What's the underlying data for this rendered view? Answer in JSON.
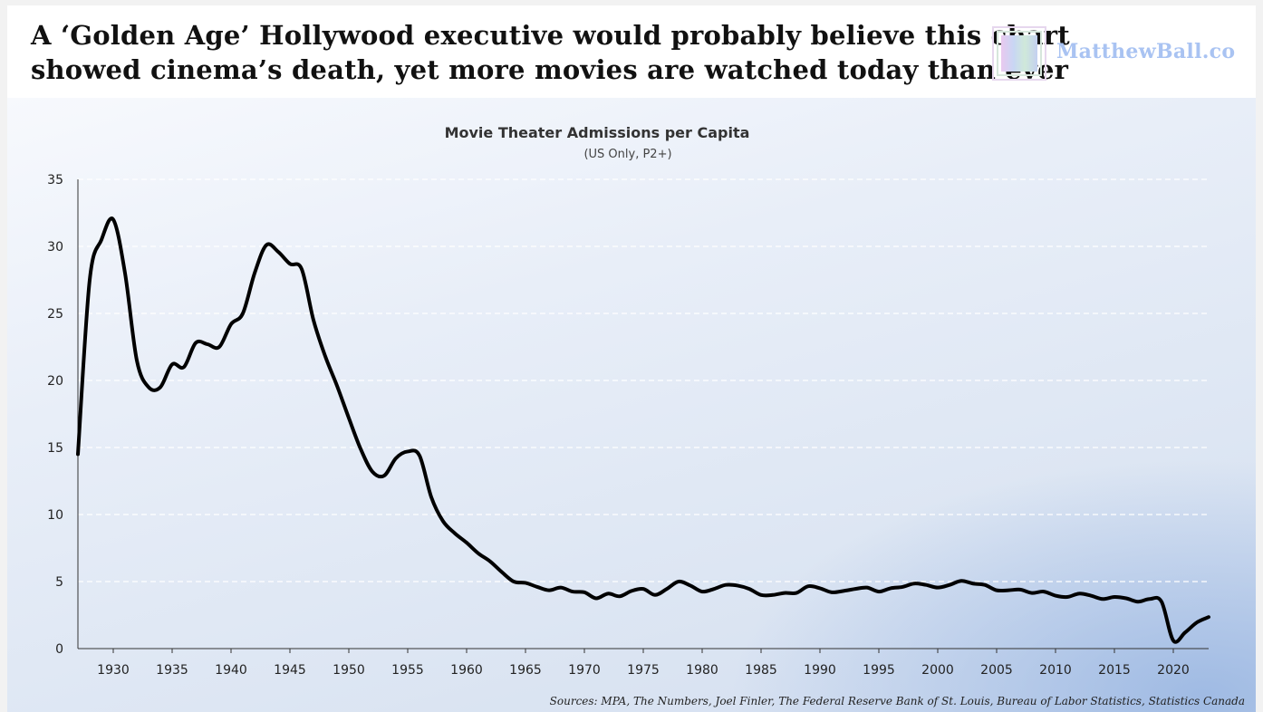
{
  "header": {
    "headline_line1": "A ‘Golden Age’ Hollywood executive would probably believe this chart",
    "headline_line2": "showed cinema’s death, yet more movies are watched today than ever",
    "logo_text": "MatthewBall.co",
    "logo_color": "#a9c3f2"
  },
  "source_note": "Sources: MPA, The Numbers, Joel Finler, The Federal Reserve Bank of St. Louis, Bureau of Labor Statistics, Statistics Canada",
  "chart_data": {
    "type": "line",
    "title": "Movie Theater Admissions per Capita",
    "subtitle": "(US Only, P2+)",
    "xlabel": "",
    "ylabel": "",
    "xlim": [
      1927,
      2023
    ],
    "ylim": [
      0,
      35
    ],
    "xticks": [
      1930,
      1935,
      1940,
      1945,
      1950,
      1955,
      1960,
      1965,
      1970,
      1975,
      1980,
      1985,
      1990,
      1995,
      2000,
      2005,
      2010,
      2015,
      2020
    ],
    "yticks": [
      0,
      5,
      10,
      15,
      20,
      25,
      30,
      35
    ],
    "grid": "horizontal dashed",
    "line_color": "#000000",
    "series": [
      {
        "name": "Admissions per Capita",
        "x": [
          1927,
          1928,
          1929,
          1930,
          1931,
          1932,
          1933,
          1934,
          1935,
          1936,
          1937,
          1938,
          1939,
          1940,
          1941,
          1942,
          1943,
          1944,
          1945,
          1946,
          1947,
          1948,
          1949,
          1950,
          1951,
          1952,
          1953,
          1954,
          1955,
          1956,
          1957,
          1958,
          1959,
          1960,
          1961,
          1962,
          1963,
          1964,
          1965,
          1966,
          1967,
          1968,
          1969,
          1970,
          1971,
          1972,
          1973,
          1974,
          1975,
          1976,
          1977,
          1978,
          1979,
          1980,
          1981,
          1982,
          1983,
          1984,
          1985,
          1986,
          1987,
          1988,
          1989,
          1990,
          1991,
          1992,
          1993,
          1994,
          1995,
          1996,
          1997,
          1998,
          1999,
          2000,
          2001,
          2002,
          2003,
          2004,
          2005,
          2006,
          2007,
          2008,
          2009,
          2010,
          2011,
          2012,
          2013,
          2014,
          2015,
          2016,
          2017,
          2018,
          2019,
          2020,
          2021,
          2022,
          2023
        ],
        "values": [
          14.5,
          27.5,
          30.5,
          32.0,
          28.0,
          21.5,
          19.5,
          19.5,
          21.2,
          21.0,
          22.8,
          22.7,
          22.5,
          24.2,
          25.0,
          28.0,
          30.1,
          29.6,
          28.7,
          28.3,
          24.5,
          21.8,
          19.6,
          17.2,
          14.9,
          13.2,
          12.9,
          14.2,
          14.7,
          14.4,
          11.3,
          9.5,
          8.6,
          7.9,
          7.1,
          6.5,
          5.7,
          5.0,
          4.9,
          4.6,
          4.35,
          4.55,
          4.25,
          4.2,
          3.75,
          4.1,
          3.9,
          4.3,
          4.45,
          4.0,
          4.45,
          5.0,
          4.7,
          4.25,
          4.45,
          4.75,
          4.7,
          4.45,
          4.0,
          4.0,
          4.15,
          4.15,
          4.65,
          4.5,
          4.2,
          4.3,
          4.45,
          4.55,
          4.25,
          4.5,
          4.6,
          4.85,
          4.75,
          4.55,
          4.75,
          5.05,
          4.85,
          4.75,
          4.35,
          4.35,
          4.4,
          4.15,
          4.25,
          3.95,
          3.85,
          4.1,
          3.95,
          3.7,
          3.85,
          3.75,
          3.5,
          3.7,
          3.5,
          0.6,
          1.2,
          1.95,
          2.35
        ]
      }
    ]
  }
}
